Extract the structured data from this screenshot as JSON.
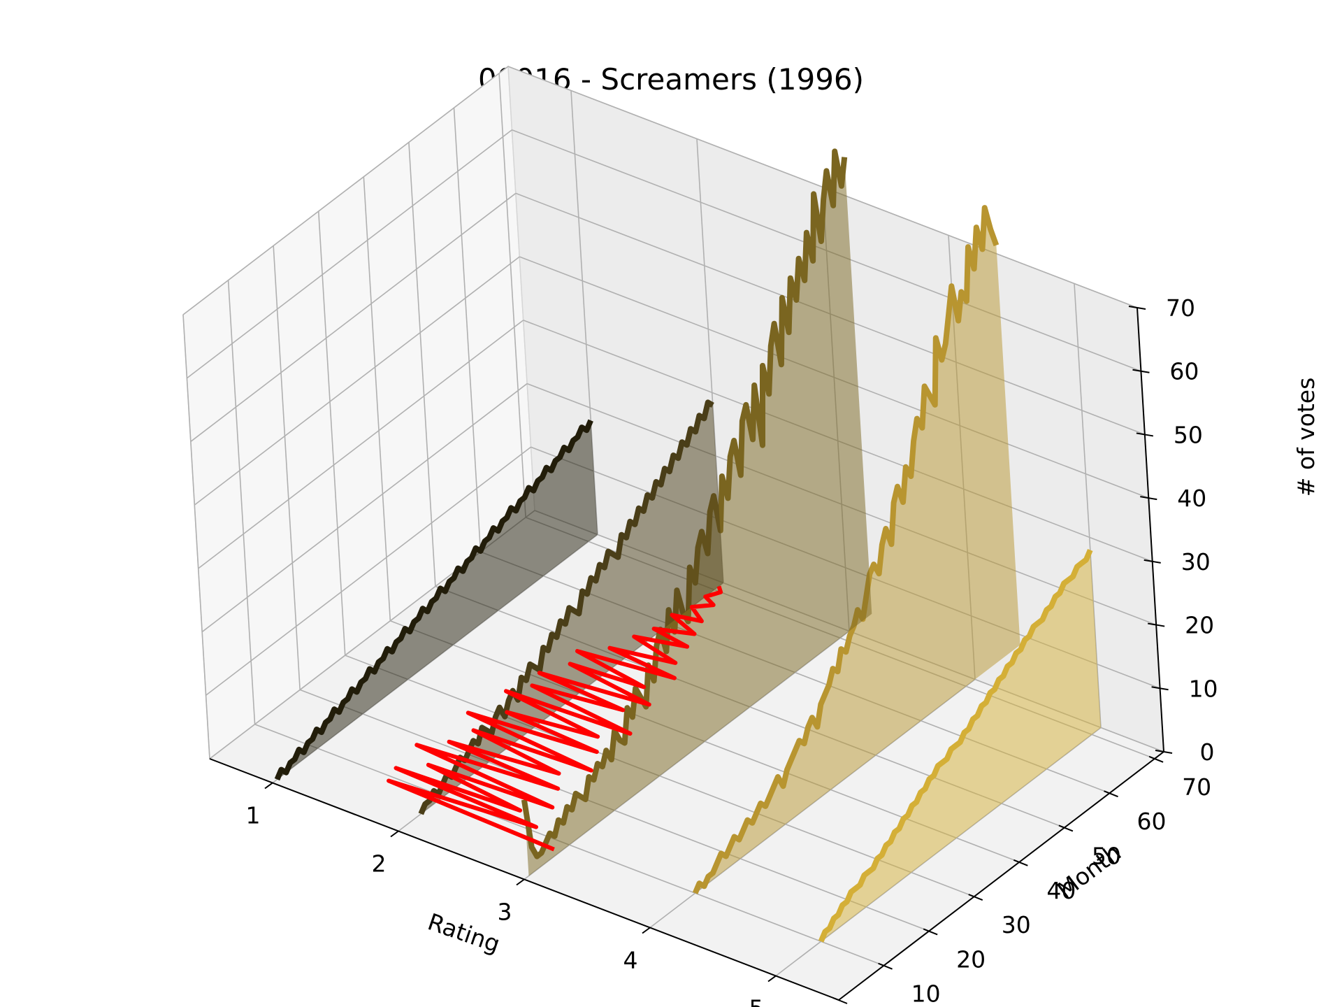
{
  "chart_data": {
    "type": "line",
    "projection": "3d",
    "title": "00016 - Screamers (1996)",
    "xlabel": "Rating",
    "ylabel": "Month",
    "zlabel": "# of votes",
    "x_ticks": [
      5,
      4,
      3,
      2,
      1
    ],
    "y_ticks": [
      0,
      10,
      20,
      30,
      40,
      50,
      60,
      70
    ],
    "z_ticks": [
      0,
      10,
      20,
      30,
      40,
      50,
      60,
      70
    ],
    "xlim": [
      0.5,
      5.5
    ],
    "ylim": [
      0,
      72
    ],
    "zlim": [
      0,
      70
    ],
    "grid": true,
    "series": [
      {
        "rating": 5,
        "color": "#d4af37",
        "start_month": 10,
        "values": [
          0,
          1,
          1,
          2,
          2,
          3,
          3,
          4,
          4,
          4,
          5,
          5,
          5,
          6,
          6,
          7,
          7,
          8,
          8,
          9,
          9,
          10,
          10,
          11,
          11,
          12,
          12,
          13,
          13,
          13,
          14,
          14,
          14,
          15,
          15,
          16,
          16,
          17,
          17,
          18,
          18,
          19,
          19,
          20,
          20,
          21,
          21,
          22,
          22,
          23,
          23,
          23,
          24,
          24,
          25,
          25,
          26,
          26,
          26,
          27,
          27,
          27,
          28
        ]
      },
      {
        "rating": 4,
        "color": "#b89530",
        "start_month": 10,
        "values": [
          0,
          1,
          0,
          1,
          1,
          2,
          3,
          2,
          3,
          4,
          3,
          4,
          5,
          4,
          5,
          6,
          5,
          6,
          7,
          8,
          6,
          8,
          9,
          10,
          11,
          10,
          12,
          13,
          11,
          14,
          15,
          16,
          18,
          17,
          20,
          19,
          21,
          22,
          24,
          22,
          25,
          28,
          29,
          27,
          31,
          33,
          30,
          36,
          38,
          35,
          40,
          38,
          43,
          46,
          44,
          50,
          48,
          46,
          56,
          52,
          54,
          58,
          62,
          56,
          60,
          58,
          66,
          62,
          68,
          64,
          70,
          66,
          63
        ]
      },
      {
        "rating": 3,
        "color": "#7a6520",
        "start_month": 1,
        "values": [
          12,
          4,
          2,
          2,
          3,
          4,
          3,
          5,
          4,
          6,
          5,
          7,
          6,
          5,
          8,
          7,
          9,
          8,
          10,
          8,
          12,
          10,
          9,
          14,
          12,
          16,
          14,
          12,
          18,
          15,
          20,
          22,
          18,
          24,
          20,
          26,
          22,
          20,
          28,
          25,
          30,
          32,
          28,
          34,
          36,
          30,
          38,
          34,
          40,
          42,
          36,
          44,
          46,
          40,
          48,
          38,
          50,
          45,
          52,
          55,
          48,
          58,
          52,
          60,
          56,
          62,
          58,
          65,
          60,
          70,
          62,
          68,
          72,
          66,
          74,
          68,
          72
        ]
      },
      {
        "rating": 2,
        "color": "#4a3e18",
        "start_month": 5,
        "values": [
          0,
          1,
          1,
          2,
          1,
          2,
          3,
          2,
          3,
          4,
          3,
          4,
          5,
          4,
          6,
          5,
          4,
          6,
          7,
          5,
          7,
          8,
          6,
          9,
          8,
          10,
          9,
          8,
          11,
          10,
          12,
          11,
          13,
          12,
          14,
          13,
          12,
          15,
          14,
          16,
          15,
          17,
          16,
          18,
          17,
          16,
          19,
          18,
          20,
          19,
          21,
          20,
          22,
          21,
          23,
          22,
          24,
          23,
          25,
          24,
          26,
          25,
          27,
          26,
          28,
          27,
          29,
          28
        ]
      },
      {
        "rating": 1,
        "color": "#221d0a",
        "start_month": 1,
        "values": [
          0,
          1,
          0,
          1,
          1,
          2,
          1,
          2,
          2,
          3,
          2,
          3,
          3,
          4,
          3,
          4,
          4,
          5,
          4,
          5,
          5,
          6,
          5,
          6,
          6,
          7,
          6,
          7,
          7,
          8,
          7,
          8,
          8,
          9,
          8,
          9,
          9,
          10,
          9,
          10,
          10,
          11,
          10,
          11,
          11,
          12,
          11,
          12,
          12,
          13,
          12,
          13,
          13,
          14,
          13,
          14,
          14,
          15,
          14,
          15,
          15,
          16,
          15,
          16,
          16,
          17,
          16,
          17,
          17,
          18,
          17,
          18
        ]
      }
    ],
    "overlay": {
      "color": "#ff0000",
      "note_free": true,
      "points": [
        [
          2.95,
          8
        ],
        [
          1.6,
          9
        ],
        [
          2.7,
          11
        ],
        [
          1.55,
          12
        ],
        [
          2.5,
          13
        ],
        [
          1.7,
          15
        ],
        [
          2.65,
          16
        ],
        [
          1.5,
          18
        ],
        [
          2.55,
          20
        ],
        [
          1.65,
          21
        ],
        [
          2.45,
          23
        ],
        [
          1.7,
          25
        ],
        [
          2.6,
          26
        ],
        [
          1.55,
          28
        ],
        [
          2.5,
          30
        ],
        [
          1.75,
          31
        ],
        [
          2.4,
          33
        ],
        [
          1.6,
          35
        ],
        [
          2.55,
          36
        ],
        [
          1.7,
          38
        ],
        [
          2.35,
          40
        ],
        [
          1.65,
          41
        ],
        [
          2.45,
          43
        ],
        [
          1.75,
          45
        ],
        [
          2.3,
          46
        ],
        [
          1.7,
          48
        ],
        [
          2.4,
          50
        ],
        [
          1.85,
          51
        ],
        [
          2.3,
          53
        ],
        [
          1.9,
          55
        ],
        [
          2.25,
          57
        ],
        [
          1.95,
          58
        ],
        [
          2.2,
          60
        ],
        [
          1.95,
          62
        ],
        [
          2.15,
          63
        ],
        [
          2.0,
          65
        ],
        [
          2.1,
          67
        ],
        [
          2.0,
          68
        ],
        [
          2.05,
          70
        ],
        [
          2.0,
          71
        ]
      ]
    }
  }
}
